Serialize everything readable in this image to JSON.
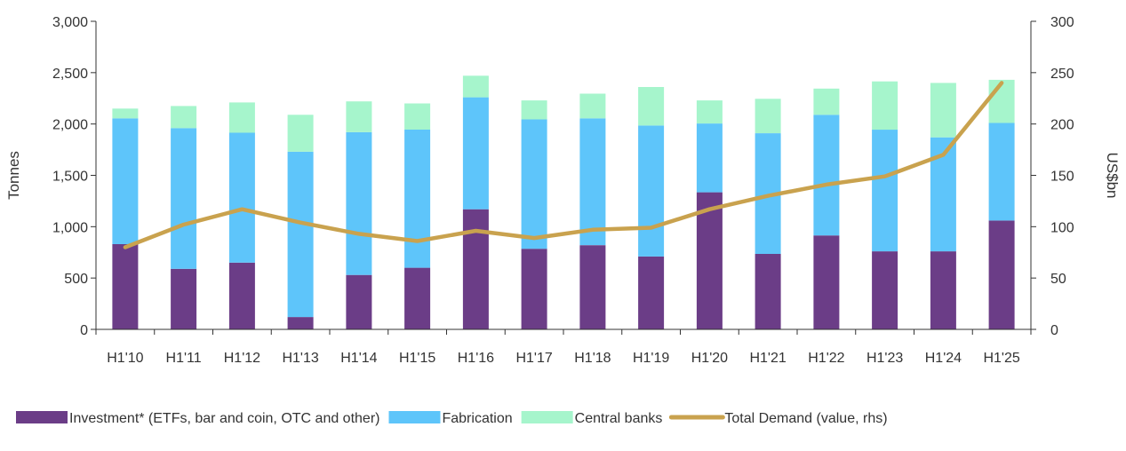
{
  "chart_data": {
    "type": "bar",
    "categories": [
      "H1'10",
      "H1'11",
      "H1'12",
      "H1'13",
      "H1'14",
      "H1'15",
      "H1'16",
      "H1'17",
      "H1'18",
      "H1'19",
      "H1'20",
      "H1'21",
      "H1'22",
      "H1'23",
      "H1'24",
      "H1'25"
    ],
    "series": [
      {
        "name": "Investment* (ETFs, bar and coin, OTC and other)",
        "axis": "left",
        "color": "#6b3d87",
        "values": [
          830,
          590,
          650,
          120,
          530,
          600,
          1170,
          785,
          820,
          710,
          1335,
          735,
          915,
          760,
          760,
          1060
        ]
      },
      {
        "name": "Fabrication",
        "axis": "left",
        "color": "#5ec5fa",
        "values": [
          1225,
          1370,
          1265,
          1610,
          1390,
          1345,
          1090,
          1260,
          1235,
          1275,
          670,
          1175,
          1175,
          1185,
          1110,
          950
        ]
      },
      {
        "name": "Central banks",
        "axis": "left",
        "color": "#a6f5cc",
        "values": [
          95,
          215,
          295,
          360,
          300,
          255,
          210,
          185,
          240,
          375,
          225,
          335,
          255,
          470,
          530,
          420
        ]
      },
      {
        "name": "Total Demand (value, rhs)",
        "axis": "right",
        "type": "line",
        "color": "#c9a24e",
        "values": [
          80,
          102,
          117,
          104,
          93,
          86,
          96,
          89,
          97,
          99,
          117,
          130,
          141,
          149,
          170,
          240
        ]
      }
    ],
    "ylabel": "Tonnes",
    "y2label": "US$bn",
    "ylim": [
      0,
      3000
    ],
    "y2lim": [
      0,
      300
    ],
    "yticks": [
      "0",
      "500",
      "1,000",
      "1,500",
      "2,000",
      "2,500",
      "3,000"
    ],
    "y2ticks": [
      "0",
      "50",
      "100",
      "150",
      "200",
      "250",
      "300"
    ],
    "grid": false,
    "legend": "bottom"
  }
}
